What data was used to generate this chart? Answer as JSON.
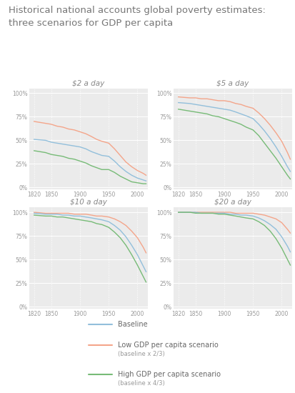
{
  "title": "Historical national accounts global poverty estimates:\nthree scenarios for GDP per capita",
  "title_fontsize": 9.5,
  "subplot_titles": [
    "$2 a day",
    "$5 a day",
    "$10 a day",
    "$20 a day"
  ],
  "years": [
    1820,
    1840,
    1850,
    1860,
    1870,
    1880,
    1890,
    1900,
    1910,
    1920,
    1929,
    1938,
    1950,
    1960,
    1970,
    1980,
    1990,
    2000,
    2010,
    2015
  ],
  "data": {
    "$2 a day": {
      "baseline": [
        0.51,
        0.5,
        0.48,
        0.47,
        0.46,
        0.45,
        0.44,
        0.43,
        0.41,
        0.38,
        0.36,
        0.34,
        0.33,
        0.28,
        0.22,
        0.17,
        0.13,
        0.1,
        0.08,
        0.07
      ],
      "low": [
        0.7,
        0.68,
        0.67,
        0.65,
        0.64,
        0.62,
        0.61,
        0.59,
        0.57,
        0.54,
        0.51,
        0.49,
        0.47,
        0.41,
        0.34,
        0.27,
        0.22,
        0.18,
        0.15,
        0.13
      ],
      "high": [
        0.39,
        0.37,
        0.35,
        0.34,
        0.33,
        0.31,
        0.3,
        0.28,
        0.26,
        0.23,
        0.21,
        0.19,
        0.19,
        0.16,
        0.12,
        0.09,
        0.06,
        0.05,
        0.04,
        0.04
      ]
    },
    "$5 a day": {
      "baseline": [
        0.9,
        0.89,
        0.88,
        0.87,
        0.86,
        0.85,
        0.84,
        0.83,
        0.82,
        0.8,
        0.78,
        0.76,
        0.73,
        0.67,
        0.6,
        0.52,
        0.43,
        0.33,
        0.22,
        0.17
      ],
      "low": [
        0.96,
        0.95,
        0.95,
        0.94,
        0.94,
        0.93,
        0.92,
        0.92,
        0.91,
        0.89,
        0.88,
        0.86,
        0.84,
        0.79,
        0.73,
        0.66,
        0.58,
        0.49,
        0.37,
        0.3
      ],
      "high": [
        0.83,
        0.81,
        0.8,
        0.79,
        0.78,
        0.76,
        0.75,
        0.73,
        0.71,
        0.69,
        0.67,
        0.64,
        0.61,
        0.55,
        0.47,
        0.39,
        0.31,
        0.22,
        0.13,
        0.09
      ]
    },
    "$10 a day": {
      "baseline": [
        0.99,
        0.98,
        0.98,
        0.98,
        0.97,
        0.97,
        0.96,
        0.96,
        0.95,
        0.94,
        0.93,
        0.92,
        0.9,
        0.86,
        0.81,
        0.74,
        0.65,
        0.55,
        0.43,
        0.37
      ],
      "low": [
        1.0,
        0.99,
        0.99,
        0.99,
        0.99,
        0.99,
        0.98,
        0.98,
        0.98,
        0.97,
        0.96,
        0.96,
        0.95,
        0.93,
        0.9,
        0.86,
        0.8,
        0.73,
        0.63,
        0.57
      ],
      "high": [
        0.97,
        0.96,
        0.96,
        0.95,
        0.95,
        0.94,
        0.93,
        0.92,
        0.91,
        0.9,
        0.88,
        0.87,
        0.84,
        0.79,
        0.73,
        0.65,
        0.55,
        0.44,
        0.32,
        0.26
      ]
    },
    "$20 a day": {
      "baseline": [
        1.0,
        1.0,
        1.0,
        0.99,
        0.99,
        0.99,
        0.99,
        0.99,
        0.98,
        0.98,
        0.97,
        0.97,
        0.96,
        0.94,
        0.91,
        0.87,
        0.82,
        0.74,
        0.64,
        0.58
      ],
      "low": [
        1.0,
        1.0,
        1.0,
        1.0,
        1.0,
        1.0,
        1.0,
        1.0,
        1.0,
        0.99,
        0.99,
        0.99,
        0.99,
        0.98,
        0.97,
        0.95,
        0.93,
        0.89,
        0.82,
        0.78
      ],
      "high": [
        1.0,
        1.0,
        0.99,
        0.99,
        0.99,
        0.99,
        0.98,
        0.98,
        0.97,
        0.96,
        0.95,
        0.94,
        0.93,
        0.9,
        0.86,
        0.8,
        0.72,
        0.62,
        0.5,
        0.44
      ]
    }
  },
  "colors": {
    "baseline": "#92bfdb",
    "low": "#f4a58a",
    "high": "#77bb77"
  },
  "bg_color": "#ebebeb",
  "fig_bg": "#ffffff",
  "grid_color": "#ffffff",
  "title_color": "#777777",
  "tick_color": "#999999",
  "subplot_title_color": "#888888",
  "legend": {
    "baseline_label": "Baseline",
    "low_label": "Low GDP per capita scenario",
    "low_sub": "(baseline x 2/3)",
    "high_label": "High GDP per capita scenario",
    "high_sub": "(baseline x 4/3)"
  }
}
